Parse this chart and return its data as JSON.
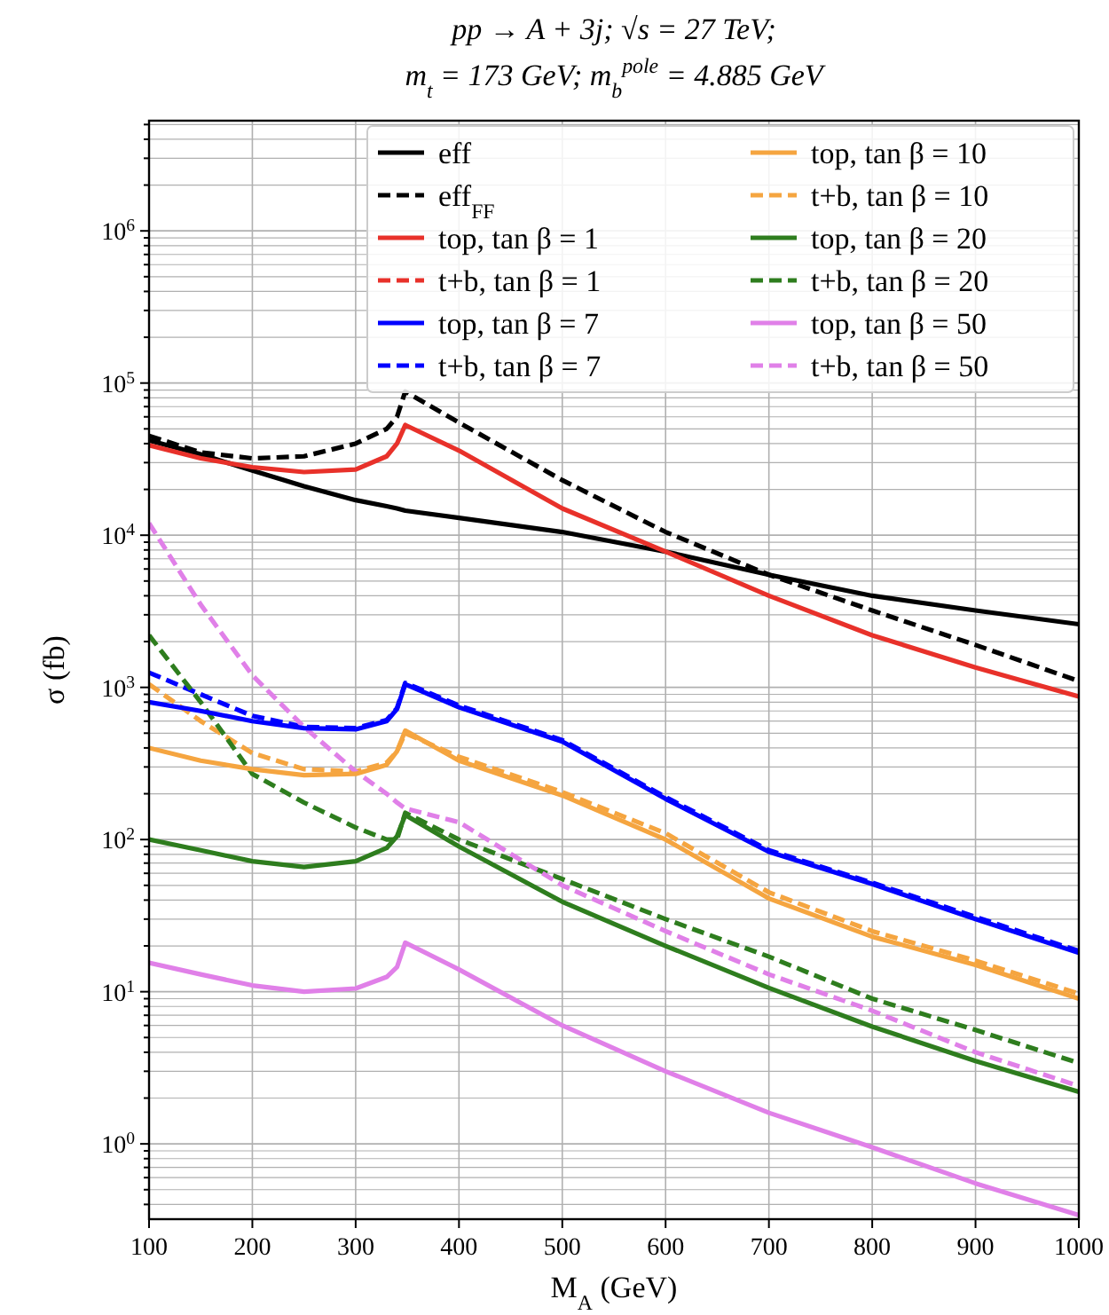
{
  "chart_data": {
    "type": "line",
    "title": "pp → A + 3j; √s = 27 TeV;",
    "subtitle": "m$_{t}$ = 173 GeV; m$_{b}$$^{pole}$ = 4.885 GeV",
    "xlabel": "M$_{A}$ (GeV)",
    "ylabel": "σ (fb)",
    "log": "y",
    "grid": true,
    "legend": "top right",
    "marker": "none",
    "xlim": [
      100,
      1000
    ],
    "xticks": [
      100,
      200,
      300,
      400,
      500,
      600,
      700,
      800,
      900,
      1000
    ],
    "ylim": [
      0.32,
      5300000
    ],
    "yticks": [
      {
        "value": 0.4,
        "label": null
      },
      {
        "value": 0.5,
        "label": null
      },
      {
        "value": 0.6,
        "label": null
      },
      {
        "value": 0.7,
        "label": null
      },
      {
        "value": 0.8,
        "label": null
      },
      {
        "value": 0.9,
        "label": null
      },
      {
        "value": 1,
        "label": "10$^{0}$"
      },
      {
        "value": 2,
        "label": null
      },
      {
        "value": 3,
        "label": null
      },
      {
        "value": 4,
        "label": null
      },
      {
        "value": 5,
        "label": null
      },
      {
        "value": 6,
        "label": null
      },
      {
        "value": 7,
        "label": null
      },
      {
        "value": 8,
        "label": null
      },
      {
        "value": 9,
        "label": null
      },
      {
        "value": 10,
        "label": "10$^{1}$"
      },
      {
        "value": 20,
        "label": null
      },
      {
        "value": 30,
        "label": null
      },
      {
        "value": 40,
        "label": null
      },
      {
        "value": 50,
        "label": null
      },
      {
        "value": 60,
        "label": null
      },
      {
        "value": 70,
        "label": null
      },
      {
        "value": 80,
        "label": null
      },
      {
        "value": 90,
        "label": null
      },
      {
        "value": 100,
        "label": "10$^{2}$"
      },
      {
        "value": 200,
        "label": null
      },
      {
        "value": 300,
        "label": null
      },
      {
        "value": 400,
        "label": null
      },
      {
        "value": 500,
        "label": null
      },
      {
        "value": 600,
        "label": null
      },
      {
        "value": 700,
        "label": null
      },
      {
        "value": 800,
        "label": null
      },
      {
        "value": 900,
        "label": null
      },
      {
        "value": 1000,
        "label": "10$^{3}$"
      },
      {
        "value": 2000,
        "label": null
      },
      {
        "value": 3000,
        "label": null
      },
      {
        "value": 4000,
        "label": null
      },
      {
        "value": 5000,
        "label": null
      },
      {
        "value": 6000,
        "label": null
      },
      {
        "value": 7000,
        "label": null
      },
      {
        "value": 8000,
        "label": null
      },
      {
        "value": 9000,
        "label": null
      },
      {
        "value": 10000,
        "label": "10$^{4}$"
      },
      {
        "value": 20000,
        "label": null
      },
      {
        "value": 30000,
        "label": null
      },
      {
        "value": 40000,
        "label": null
      },
      {
        "value": 50000,
        "label": null
      },
      {
        "value": 60000,
        "label": null
      },
      {
        "value": 70000,
        "label": null
      },
      {
        "value": 80000,
        "label": null
      },
      {
        "value": 90000,
        "label": null
      },
      {
        "value": 100000,
        "label": "10$^{5}$"
      },
      {
        "value": 200000,
        "label": null
      },
      {
        "value": 300000,
        "label": null
      },
      {
        "value": 400000,
        "label": null
      },
      {
        "value": 500000,
        "label": null
      },
      {
        "value": 600000,
        "label": null
      },
      {
        "value": 700000,
        "label": null
      },
      {
        "value": 800000,
        "label": null
      },
      {
        "value": 900000,
        "label": null
      },
      {
        "value": 1000000,
        "label": "10$^{6}$"
      },
      {
        "value": 2000000,
        "label": null
      },
      {
        "value": 3000000,
        "label": null
      },
      {
        "value": 4000000,
        "label": null
      },
      {
        "value": 5000000,
        "label": null
      }
    ],
    "x": [
      100,
      150,
      200,
      250,
      300,
      330,
      340,
      348,
      400,
      500,
      600,
      700,
      800,
      900,
      1000
    ],
    "series": [
      {
        "name": "eff",
        "color": "#000000",
        "line_style": "solid",
        "values": [
          42000,
          34000,
          26600,
          21000,
          17000,
          15500,
          15000,
          14500,
          13000,
          10500,
          7800,
          5500,
          4000,
          3200,
          2600
        ]
      },
      {
        "name": "eff$_{FF}$",
        "color": "#000000",
        "line_style": "dashed",
        "values": [
          45000,
          35000,
          32000,
          33000,
          40000,
          50000,
          60000,
          88000,
          55000,
          23000,
          10500,
          5500,
          3200,
          1900,
          1100
        ]
      },
      {
        "name": "top, tan β = 1",
        "color": "#e8312a",
        "line_style": "solid",
        "values": [
          39000,
          32000,
          28000,
          26000,
          27000,
          33000,
          40000,
          53000,
          36000,
          15000,
          7800,
          4000,
          2200,
          1350,
          870
        ]
      },
      {
        "name": "t+b, tan β = 1",
        "color": "#e8312a",
        "line_style": "dashed",
        "values": [
          null,
          null,
          null,
          null,
          null,
          null,
          null,
          null,
          null,
          null,
          null,
          null,
          null,
          null,
          null
        ]
      },
      {
        "name": "top, tan β = 7",
        "color": "#0000ff",
        "line_style": "solid",
        "values": [
          800,
          700,
          600,
          540,
          530,
          600,
          720,
          1050,
          740,
          440,
          185,
          83,
          51,
          30,
          18
        ]
      },
      {
        "name": "t+b, tan β = 7",
        "color": "#0000ff",
        "line_style": "dashed",
        "values": [
          1250,
          900,
          650,
          550,
          540,
          610,
          730,
          1070,
          760,
          450,
          190,
          85,
          52,
          31,
          18.5
        ]
      },
      {
        "name": "top, tan β = 10",
        "color": "#f5a540",
        "line_style": "solid",
        "values": [
          400,
          330,
          290,
          265,
          270,
          310,
          380,
          520,
          330,
          195,
          100,
          41,
          23,
          15,
          9
        ]
      },
      {
        "name": "t+b, tan β = 10",
        "color": "#f5a540",
        "line_style": "dashed",
        "values": [
          1050,
          600,
          370,
          290,
          280,
          320,
          380,
          500,
          350,
          205,
          110,
          45,
          25,
          16,
          9.7
        ]
      },
      {
        "name": "top, tan β = 20",
        "color": "#2e7d1e",
        "line_style": "solid",
        "values": [
          100,
          85,
          72,
          66,
          72,
          88,
          105,
          145,
          90,
          39,
          20,
          10.6,
          5.9,
          3.5,
          2.2
        ]
      },
      {
        "name": "t+b, tan β = 20",
        "color": "#2e7d1e",
        "line_style": "dashed",
        "values": [
          2200,
          800,
          270,
          175,
          120,
          100,
          100,
          150,
          100,
          55,
          30,
          17,
          9,
          5.6,
          3.4
        ]
      },
      {
        "name": "top, tan β = 50",
        "color": "#e080e8",
        "line_style": "solid",
        "values": [
          15.5,
          13,
          11,
          10,
          10.5,
          12.5,
          14.5,
          21,
          14,
          6,
          3,
          1.6,
          0.95,
          0.55,
          0.34
        ]
      },
      {
        "name": "t+b, tan β = 50",
        "color": "#e080e8",
        "line_style": "dashed",
        "values": [
          12000,
          3500,
          1200,
          550,
          280,
          200,
          175,
          160,
          130,
          50,
          25,
          13,
          7.5,
          4,
          2.4
        ]
      }
    ]
  }
}
